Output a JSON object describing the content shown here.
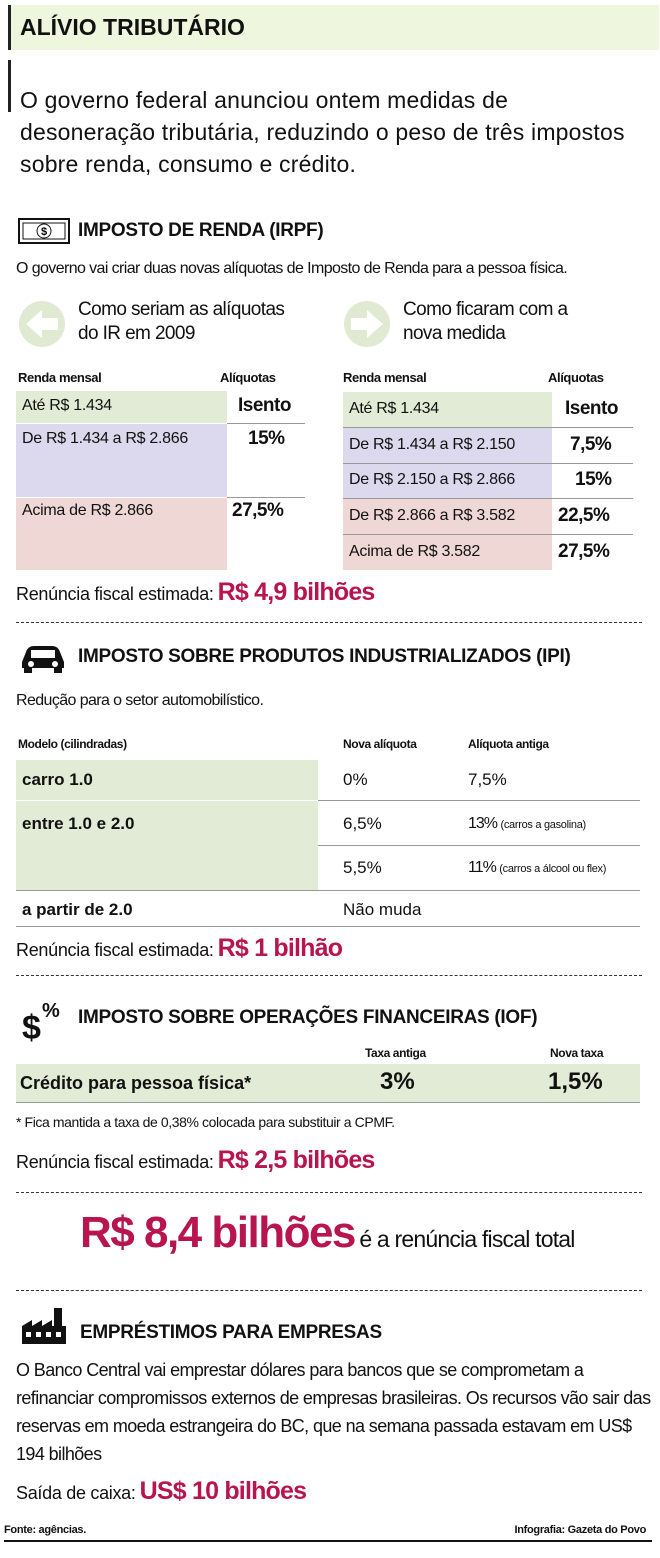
{
  "header": {
    "title": "ALÍVIO TRIBUTÁRIO",
    "intro": "O governo federal anunciou ontem medidas de desoneração tributária, reduzindo o peso de três impostos sobre renda, consumo e crédito."
  },
  "irpf": {
    "title": "IMPOSTO DE RENDA (IRPF)",
    "description": "O governo vai criar duas novas alíquotas de Imposto de Renda para a pessoa física.",
    "before": {
      "heading": "Como seriam as alíquotas do IR em 2009",
      "col_income": "Renda mensal",
      "col_rate": "Alíquotas",
      "rows": [
        {
          "income": "Até R$ 1.434",
          "rate": "Isento"
        },
        {
          "income": "De R$ 1.434 a R$ 2.866",
          "rate": "15%"
        },
        {
          "income": "Acima de R$ 2.866",
          "rate": "27,5%"
        }
      ]
    },
    "after": {
      "heading": "Como ficaram com a nova medida",
      "col_income": "Renda mensal",
      "col_rate": "Alíquotas",
      "rows": [
        {
          "income": "Até R$ 1.434",
          "rate": "Isento"
        },
        {
          "income": "De R$ 1.434 a R$ 2.150",
          "rate": "7,5%"
        },
        {
          "income": "De R$ 2.150 a R$ 2.866",
          "rate": "15%"
        },
        {
          "income": "De R$ 2.866 a R$ 3.582",
          "rate": "22,5%"
        },
        {
          "income": "Acima de R$ 3.582",
          "rate": "27,5%"
        }
      ]
    },
    "waiver_label": "Renúncia fiscal estimada:",
    "waiver_value": "R$ 4,9 bilhões"
  },
  "ipi": {
    "title": "IMPOSTO SOBRE PRODUTOS INDUSTRIALIZADOS (IPI)",
    "description": "Redução para o setor automobilístico.",
    "col_model": "Modelo (cilindradas)",
    "col_new": "Nova alíquota",
    "col_old": "Alíquota antiga",
    "rows": [
      {
        "model": "carro 1.0",
        "entries": [
          {
            "new": "0%",
            "old": "7,5%"
          }
        ]
      },
      {
        "model": "entre 1.0 e 2.0",
        "entries": [
          {
            "new": "6,5%",
            "old": "13%",
            "note": "(carros a gasolina)"
          },
          {
            "new": "5,5%",
            "old": "11%",
            "note": "(carros a álcool ou flex)"
          }
        ]
      },
      {
        "model": "a partir de 2.0",
        "entries": [
          {
            "new": "Não muda"
          }
        ]
      }
    ],
    "waiver_label": "Renúncia fiscal estimada:",
    "waiver_value": "R$ 1 bilhão"
  },
  "iof": {
    "title": "IMPOSTO SOBRE OPERAÇÕES FINANCEIRAS (IOF)",
    "col_old": "Taxa antiga",
    "col_new": "Nova taxa",
    "row": {
      "label": "Crédito para pessoa física*",
      "old": "3%",
      "new": "1,5%"
    },
    "footnote": "* Fica mantida a taxa de 0,38% colocada para substituir a CPMF.",
    "waiver_label": "Renúncia fiscal estimada:",
    "waiver_value": "R$ 2,5 bilhões"
  },
  "total": {
    "value": "R$ 8,4 bilhões",
    "label": "é a renúncia fiscal total"
  },
  "loans": {
    "title": "EMPRÉSTIMOS PARA EMPRESAS",
    "text": "O Banco Central vai emprestar dólares para bancos que se comprometam a refinanciar compromissos externos de empresas brasileiras. Os recursos vão sair das reservas em moeda estrangeira do BC, que na semana passada estavam em US$ 194 bilhões",
    "outflow_label": "Saída de caixa:",
    "outflow_value": "US$ 10 bilhões"
  },
  "footer": {
    "source": "Fonte: agências.",
    "credit": "Infografia: Gazeta do Povo"
  }
}
